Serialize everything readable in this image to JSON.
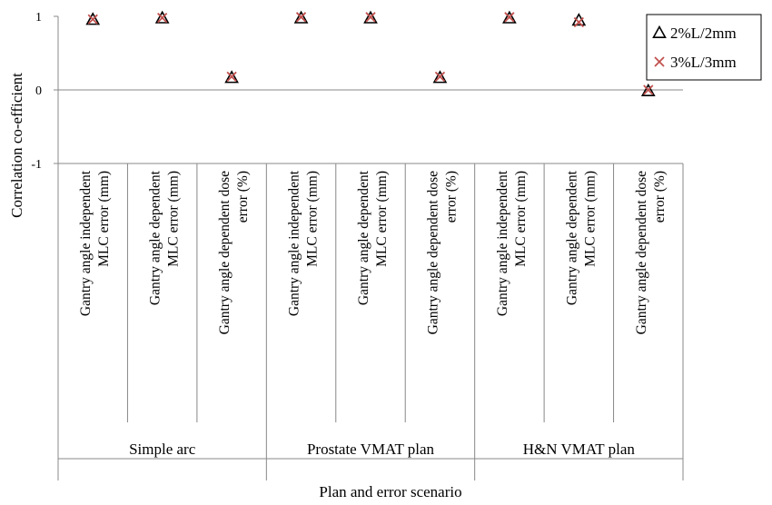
{
  "chart_data": {
    "type": "scatter",
    "ylabel": "Correlation co-efficient",
    "xlabel": "Plan and error scenario",
    "ylim": [
      -1,
      1
    ],
    "yticks": [
      "1",
      "0",
      "-1"
    ],
    "grid": false,
    "legend_position": "top-right",
    "groups": [
      "Simple arc",
      "Prostate VMAT plan",
      "H&N VMAT plan"
    ],
    "categories": [
      [
        "Gantry angle independent",
        "MLC error (mm)"
      ],
      [
        "Gantry angle dependent",
        "MLC error (mm)"
      ],
      [
        "Gantry angle dependent dose",
        "error (%)"
      ],
      [
        "Gantry angle independent",
        "MLC error (mm)"
      ],
      [
        "Gantry angle dependent",
        "MLC error (mm)"
      ],
      [
        "Gantry angle dependent dose",
        "error (%)"
      ],
      [
        "Gantry angle independent",
        "MLC error (mm)"
      ],
      [
        "Gantry angle dependent",
        "MLC error (mm)"
      ],
      [
        "Gantry angle dependent dose",
        "error (%)"
      ]
    ],
    "series": [
      {
        "name": "2%L/2mm",
        "marker": "triangle",
        "color": "#000000",
        "values": [
          0.97,
          0.99,
          0.18,
          0.99,
          0.99,
          0.18,
          0.99,
          0.96,
          0.0
        ]
      },
      {
        "name": "3%L/3mm",
        "marker": "x",
        "color": "#c0504d",
        "values": [
          0.96,
          0.98,
          0.18,
          0.99,
          0.99,
          0.18,
          0.99,
          0.92,
          0.0
        ]
      }
    ]
  }
}
